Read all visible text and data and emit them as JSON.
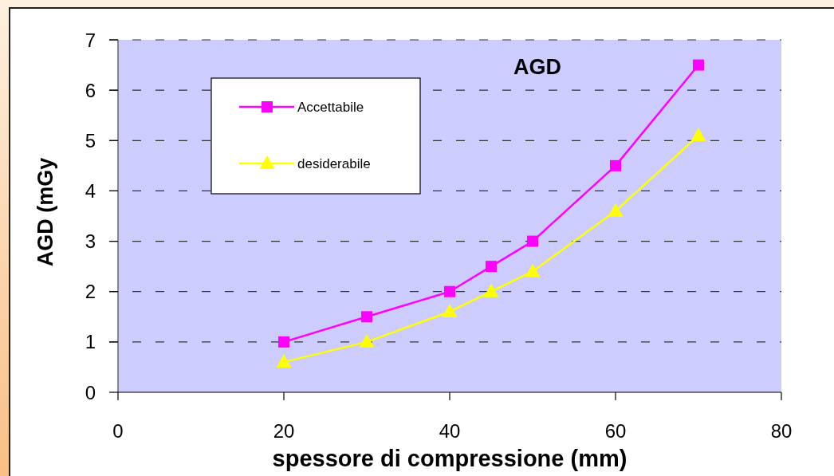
{
  "chart_data": {
    "type": "line",
    "title": "AGD",
    "xlabel": "spessore di compressione (mm)",
    "ylabel": "AGD (mGy",
    "x": [
      20,
      30,
      40,
      45,
      50,
      60,
      70
    ],
    "series": [
      {
        "name": "Accettabile",
        "color": "#ff00ff",
        "marker": "square",
        "values": [
          1.0,
          1.5,
          2.0,
          2.5,
          3.0,
          4.5,
          6.5
        ]
      },
      {
        "name": "desiderabile",
        "color": "#ffff00",
        "marker": "triangle",
        "values": [
          0.6,
          1.0,
          1.6,
          2.0,
          2.4,
          3.6,
          5.1
        ]
      }
    ],
    "xlim": [
      0,
      80
    ],
    "xticks": [
      0,
      20,
      40,
      60,
      80
    ],
    "ylim": [
      0,
      7
    ],
    "yticks": [
      0,
      1,
      2,
      3,
      4,
      5,
      6,
      7
    ],
    "grid": "y",
    "legend": "top left",
    "line_style": "solid"
  }
}
